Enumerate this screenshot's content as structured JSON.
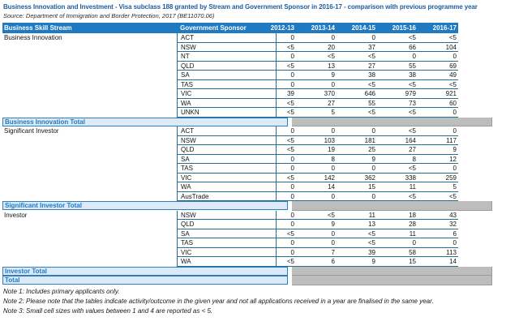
{
  "page": {
    "title": "Business Innovation and Investment - Visa subclass 188 granted by Stream and Government Sponsor in 2016-17 - comparison with previous programme year",
    "source": "Source: Department of Immigration and Border Protection, 2017 (BE11070.06)"
  },
  "table": {
    "headers": {
      "stream": "Business Skill Stream",
      "sponsor": "Government Sponsor",
      "years": [
        "2012-13",
        "2013-14",
        "2014-15",
        "2015-16",
        "2016-17"
      ]
    },
    "groups": [
      {
        "stream": "Business Innovation",
        "rows": [
          {
            "sponsor": "ACT",
            "values": [
              "0",
              "0",
              "0",
              "<5",
              "<5"
            ]
          },
          {
            "sponsor": "NSW",
            "values": [
              "<5",
              "20",
              "37",
              "66",
              "104"
            ]
          },
          {
            "sponsor": "NT",
            "values": [
              "0",
              "<5",
              "<5",
              "0",
              "0"
            ]
          },
          {
            "sponsor": "QLD",
            "values": [
              "<5",
              "13",
              "27",
              "55",
              "69"
            ]
          },
          {
            "sponsor": "SA",
            "values": [
              "0",
              "9",
              "38",
              "38",
              "49"
            ]
          },
          {
            "sponsor": "TAS",
            "values": [
              "0",
              "0",
              "<5",
              "<5",
              "<5"
            ]
          },
          {
            "sponsor": "VIC",
            "values": [
              "39",
              "370",
              "646",
              "979",
              "921"
            ]
          },
          {
            "sponsor": "WA",
            "values": [
              "<5",
              "27",
              "55",
              "73",
              "60"
            ]
          },
          {
            "sponsor": "UNKN",
            "values": [
              "<5",
              "5",
              "<5",
              "<5",
              "0"
            ]
          }
        ],
        "total_label": "Business Innovation Total"
      },
      {
        "stream": "Significant Investor",
        "rows": [
          {
            "sponsor": "ACT",
            "values": [
              "0",
              "0",
              "0",
              "<5",
              "0"
            ]
          },
          {
            "sponsor": "NSW",
            "values": [
              "<5",
              "103",
              "181",
              "164",
              "117"
            ]
          },
          {
            "sponsor": "QLD",
            "values": [
              "<5",
              "19",
              "25",
              "27",
              "9"
            ]
          },
          {
            "sponsor": "SA",
            "values": [
              "0",
              "8",
              "9",
              "8",
              "12"
            ]
          },
          {
            "sponsor": "TAS",
            "values": [
              "0",
              "0",
              "0",
              "<5",
              "0"
            ]
          },
          {
            "sponsor": "VIC",
            "values": [
              "<5",
              "142",
              "362",
              "338",
              "259"
            ]
          },
          {
            "sponsor": "WA",
            "values": [
              "0",
              "14",
              "15",
              "11",
              "5"
            ]
          },
          {
            "sponsor": "AusTrade",
            "values": [
              "0",
              "0",
              "0",
              "<5",
              "<5"
            ]
          }
        ],
        "total_label": "Significant Investor Total"
      },
      {
        "stream": "Investor",
        "rows": [
          {
            "sponsor": "NSW",
            "values": [
              "0",
              "<5",
              "11",
              "18",
              "43"
            ]
          },
          {
            "sponsor": "QLD",
            "values": [
              "0",
              "9",
              "13",
              "28",
              "32"
            ]
          },
          {
            "sponsor": "SA",
            "values": [
              "<5",
              "0",
              "<5",
              "11",
              "6"
            ]
          },
          {
            "sponsor": "TAS",
            "values": [
              "0",
              "0",
              "<5",
              "0",
              "0"
            ]
          },
          {
            "sponsor": "VIC",
            "values": [
              "0",
              "7",
              "39",
              "58",
              "113"
            ]
          },
          {
            "sponsor": "WA",
            "values": [
              "<5",
              "6",
              "9",
              "15",
              "14"
            ]
          }
        ],
        "total_label": "Investor Total"
      }
    ],
    "grand_total_label": "Total"
  },
  "notes": [
    "Note 1: Includes primary applicants only.",
    "Note 2: Please note that the tables indicate activity/outcome in the given year and not all applications received in a year are finalised in the same year.",
    "Note 3: Small cell sizes with values between 1 and 4 are reported as < 5."
  ],
  "colors": {
    "header_blue": "#1F7AC2",
    "row_line": "#256E91",
    "total_band_bg": "#DCE9F6",
    "total_band_border": "#2E7FC2",
    "total_text": "#1F7AC2",
    "masked_gray": "#BDBDBD",
    "title_blue": "#1D5C9E"
  }
}
